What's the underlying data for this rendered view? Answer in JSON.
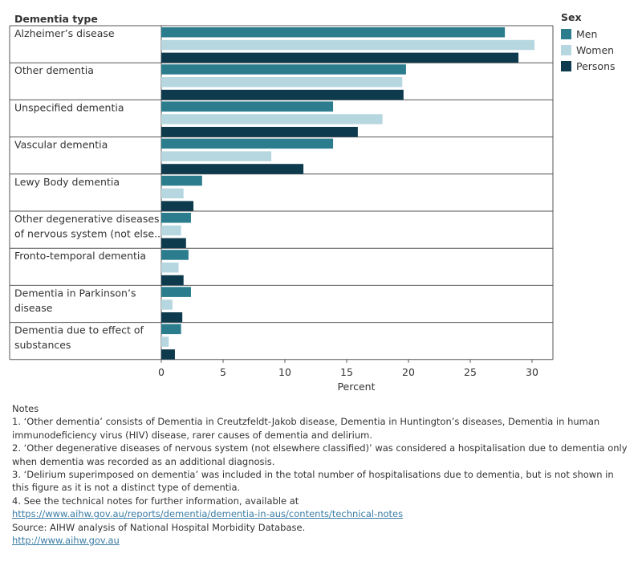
{
  "chart_data": {
    "type": "bar",
    "orientation": "horizontal",
    "row_header": "Dementia type",
    "categories": [
      [
        "Alzheimer’s disease"
      ],
      [
        "Other dementia"
      ],
      [
        "Unspecified dementia"
      ],
      [
        "Vascular dementia"
      ],
      [
        "Lewy Body dementia"
      ],
      [
        "Other degenerative diseases",
        "of nervous system (not else.."
      ],
      [
        "Fronto-temporal dementia"
      ],
      [
        "Dementia in Parkinson’s",
        "disease"
      ],
      [
        "Dementia due to effect of",
        "substances"
      ]
    ],
    "series": [
      {
        "name": "Men",
        "color": "#2b7d8e",
        "values": [
          27.8,
          19.8,
          13.9,
          13.9,
          3.3,
          2.4,
          2.2,
          2.4,
          1.6
        ]
      },
      {
        "name": "Women",
        "color": "#b7d7e0",
        "values": [
          30.2,
          19.5,
          17.9,
          8.9,
          1.8,
          1.6,
          1.4,
          0.9,
          0.6
        ]
      },
      {
        "name": "Persons",
        "color": "#0e3a4d",
        "values": [
          28.9,
          19.6,
          15.9,
          11.5,
          2.6,
          2.0,
          1.8,
          1.7,
          1.1
        ]
      }
    ],
    "xlabel": "Percent",
    "xlim": [
      0,
      32
    ],
    "xticks": [
      0,
      5,
      10,
      15,
      20,
      25,
      30
    ],
    "legend_title": "Sex",
    "legend_position": "top-right"
  },
  "notes": {
    "heading": "Notes",
    "items": [
      "1. ‘Other dementia’ consists of Dementia in Creutzfeldt-Jakob disease, Dementia in Huntington’s diseases, Dementia in human immunodeficiency virus (HIV) disease, rarer causes of dementia and delirium.",
      "2. ‘Other degenerative diseases of nervous system (not elsewhere classified)’ was considered a hospitalisation due to dementia only when dementia was recorded as an additional diagnosis.",
      "3. ‘Delirium superimposed on dementia’ was included in the total number of hospitalisations due to dementia, but is not shown in this figure as it is not a distinct type of dementia.",
      "4. See the technical notes for further information, available at"
    ],
    "link1": "https://www.aihw.gov.au/reports/dementia/dementia-in-aus/contents/technical-notes",
    "source": "Source: AIHW analysis of National Hospital Morbidity Database.",
    "link2": "http://www.aihw.gov.au"
  }
}
